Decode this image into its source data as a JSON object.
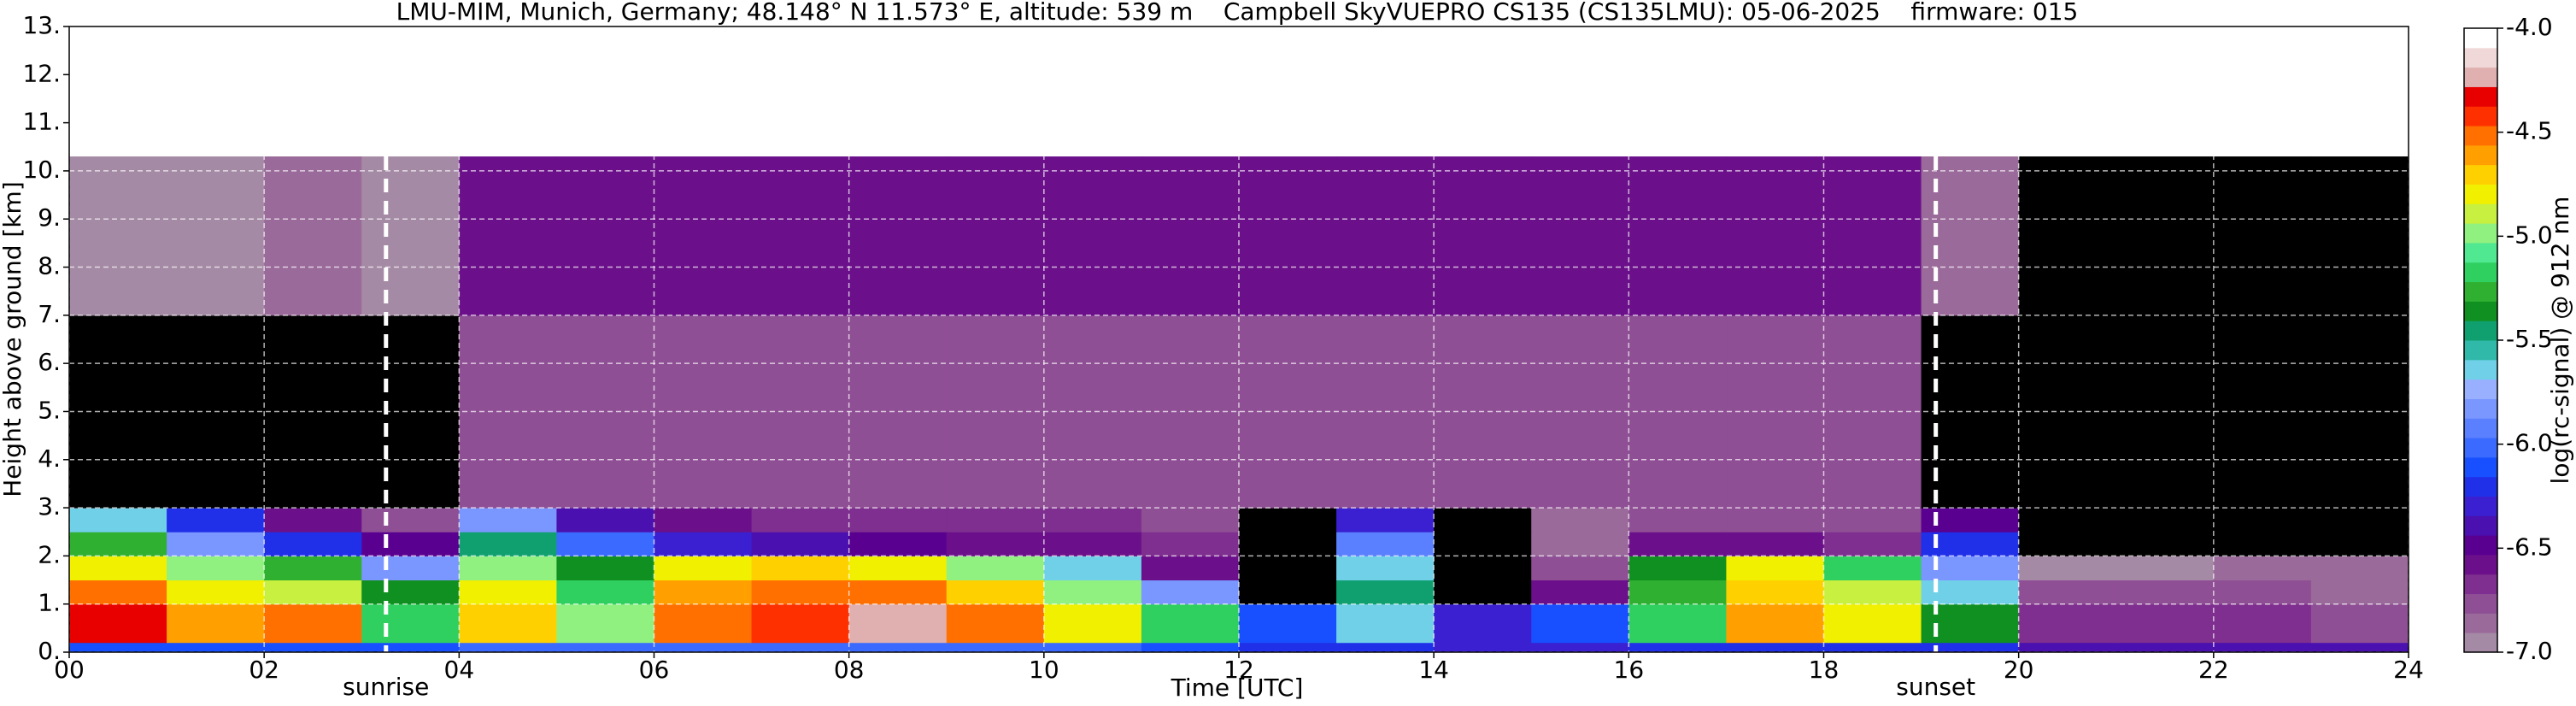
{
  "chart_data": {
    "type": "heatmap",
    "title": "LMU-MIM, Munich, Germany; 48.148° N 11.573° E, altitude: 539 m    Campbell SkyVUEPRO CS135 (CS135LMU): 05-06-2025    firmware: 015",
    "x_label": "Time [UTC]",
    "y_label": "Height above ground [km]",
    "colorbar_label": "log(rc-signal) @ 912 nm",
    "xlim": [
      0,
      24
    ],
    "ylim": [
      0,
      13
    ],
    "xticks": [
      {
        "value": 0,
        "label": "00"
      },
      {
        "value": 2,
        "label": "02"
      },
      {
        "value": 4,
        "label": "04"
      },
      {
        "value": 6,
        "label": "06"
      },
      {
        "value": 8,
        "label": "08"
      },
      10,
      12,
      14,
      16,
      18,
      20,
      22,
      24
    ],
    "yticks": [
      {
        "value": 0,
        "label": "0."
      },
      {
        "value": 1,
        "label": "1."
      },
      {
        "value": 2,
        "label": "2."
      },
      {
        "value": 3,
        "label": "3."
      },
      {
        "value": 4,
        "label": "4."
      },
      {
        "value": 5,
        "label": "5."
      },
      {
        "value": 6,
        "label": "6."
      },
      {
        "value": 7,
        "label": "7."
      },
      {
        "value": 8,
        "label": "8."
      },
      {
        "value": 9,
        "label": "9."
      },
      {
        "value": 10,
        "label": "10."
      },
      {
        "value": 11,
        "label": "11."
      },
      {
        "value": 12,
        "label": "12."
      },
      {
        "value": 13,
        "label": "13."
      }
    ],
    "grid": true,
    "x_edges": [
      0,
      1,
      2,
      3,
      4,
      5,
      6,
      7,
      8,
      9,
      10,
      11,
      12,
      13,
      14,
      15,
      16,
      17,
      18,
      19,
      20,
      21,
      22,
      23,
      24
    ],
    "y_edges": [
      0,
      0.2,
      1,
      1.5,
      2,
      2.5,
      3,
      5,
      7,
      10.3
    ],
    "z": [
      [
        -6.1,
        -6.1,
        -6.1,
        -6.1,
        -6.0,
        -6.0,
        -6.0,
        -6.0,
        -6.0,
        -6.0,
        -6.0,
        -6.1,
        -6.2,
        -6.2,
        -6.3,
        -6.3,
        -6.2,
        -6.2,
        -6.2,
        -6.2,
        -6.4,
        -6.4,
        -6.4,
        -6.4
      ],
      [
        -4.3,
        -4.6,
        -4.5,
        -5.2,
        -4.7,
        -5.0,
        -4.5,
        -4.4,
        -4.2,
        -4.5,
        -4.8,
        -5.2,
        -6.1,
        -5.6,
        -6.3,
        -6.1,
        -5.2,
        -4.6,
        -4.8,
        -5.4,
        -6.7,
        -6.7,
        -6.7,
        -6.8
      ],
      [
        -4.5,
        -4.8,
        -4.9,
        -5.4,
        -4.8,
        -5.2,
        -4.6,
        -4.5,
        -4.5,
        -4.7,
        -5.0,
        -5.8,
        -7.3,
        -5.5,
        -7.3,
        -6.6,
        -5.3,
        -4.7,
        -4.9,
        -5.6,
        -6.8,
        -6.8,
        -6.8,
        -6.9
      ],
      [
        -4.8,
        -5.0,
        -5.3,
        -5.8,
        -5.0,
        -5.4,
        -4.8,
        -4.7,
        -4.8,
        -5.0,
        -5.6,
        -6.6,
        -7.3,
        -5.6,
        -7.3,
        -6.8,
        -5.4,
        -4.8,
        -5.2,
        -5.8,
        -7.0,
        -7.0,
        -6.9,
        -6.9
      ],
      [
        -5.3,
        -5.8,
        -6.2,
        -6.5,
        -5.5,
        -6.0,
        -6.3,
        -6.4,
        -6.5,
        -6.6,
        -6.6,
        -6.7,
        -7.3,
        -5.9,
        -7.3,
        -6.9,
        -6.6,
        -6.6,
        -6.7,
        -6.2,
        -7.2,
        -7.2,
        -7.2,
        -7.3
      ],
      [
        -5.6,
        -6.2,
        -6.6,
        -6.8,
        -5.8,
        -6.4,
        -6.6,
        -6.7,
        -6.7,
        -6.7,
        -6.7,
        -6.8,
        -7.2,
        -6.3,
        -7.2,
        -6.9,
        -6.8,
        -6.8,
        -6.8,
        -6.5,
        -7.3,
        -7.2,
        -7.3,
        -7.3
      ],
      [
        -7.2,
        -7.3,
        -7.2,
        -7.3,
        -6.8,
        -6.8,
        -6.8,
        -6.8,
        -6.8,
        -6.8,
        -6.8,
        -6.8,
        -6.8,
        -6.8,
        -6.8,
        -6.8,
        -6.8,
        -6.8,
        -6.8,
        -7.1,
        -7.4,
        -7.4,
        -7.4,
        -7.4
      ],
      [
        -7.3,
        -7.3,
        -7.3,
        -7.3,
        -6.8,
        -6.8,
        -6.8,
        -6.8,
        -6.8,
        -6.8,
        -6.8,
        -6.8,
        -6.8,
        -6.8,
        -6.8,
        -6.8,
        -6.8,
        -6.8,
        -6.8,
        -7.2,
        -7.4,
        -7.4,
        -7.4,
        -7.4
      ],
      [
        -7.0,
        -7.0,
        -6.9,
        -7.0,
        -6.6,
        -6.6,
        -6.6,
        -6.6,
        -6.6,
        -6.6,
        -6.6,
        -6.6,
        -6.6,
        -6.6,
        -6.6,
        -6.6,
        -6.6,
        -6.6,
        -6.6,
        -6.9,
        -7.1,
        -7.1,
        -7.1,
        -7.1
      ]
    ],
    "clim": [
      -7,
      -4
    ],
    "cticks": [
      {
        "value": -4,
        "label": "-4.0"
      },
      -4.5,
      {
        "value": -5,
        "label": "-5.0"
      },
      -5.5,
      {
        "value": -6,
        "label": "-6.0"
      },
      -6.5,
      {
        "value": -7,
        "label": "-7.0"
      }
    ],
    "under_color": "#000000",
    "colors": [
      "#a58aa5",
      "#9a6a9a",
      "#8f4f95",
      "#7f2f8f",
      "#6b108a",
      "#5a0090",
      "#4a10b0",
      "#3a20d0",
      "#2030e8",
      "#1850ff",
      "#3a6aff",
      "#5a80ff",
      "#7a96ff",
      "#98b0ff",
      "#70d0e8",
      "#30b8a8",
      "#10a070",
      "#109020",
      "#30b030",
      "#30d060",
      "#50e890",
      "#90f080",
      "#c8f040",
      "#f0f000",
      "#ffd000",
      "#ffa000",
      "#ff7000",
      "#ff3000",
      "#e80000",
      "#e0b0b0",
      "#f0d8d8",
      "#ffffff"
    ],
    "annotations": [
      {
        "x": 3.25,
        "label": "sunrise"
      },
      {
        "x": 19.15,
        "label": "sunset"
      }
    ]
  }
}
